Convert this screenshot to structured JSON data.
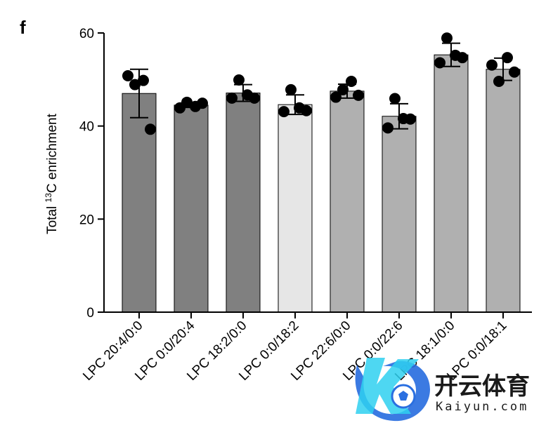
{
  "panel_label": "f",
  "chart_data": {
    "type": "bar",
    "ylabel_prefix": "Total ",
    "ylabel_sup": "13",
    "ylabel_suffix": "C enrichment",
    "ylim": [
      0,
      60
    ],
    "yticks": [
      0,
      20,
      40,
      60
    ],
    "categories": [
      "LPC 20:4/0:0",
      "LPC 0:0/20:4",
      "LPC 18:2/0:0",
      "LPC 0:0/18:2",
      "LPC 22:6/0:0",
      "LPC 0:0/22:6",
      "LPC 18:1/0:0",
      "LPC 0:0/18:1"
    ],
    "values": [
      47.0,
      44.5,
      47.1,
      44.6,
      47.5,
      42.1,
      55.3,
      52.2
    ],
    "errors": [
      5.2,
      0.5,
      1.8,
      2.1,
      1.5,
      2.7,
      2.5,
      2.4
    ],
    "points": [
      [
        50.8,
        48.9,
        49.8,
        39.3
      ],
      [
        43.9,
        45.1,
        44.2,
        44.9
      ],
      [
        46.0,
        49.9,
        46.7,
        46.0
      ],
      [
        43.1,
        47.8,
        43.9,
        43.3
      ],
      [
        46.2,
        47.8,
        49.6,
        46.6
      ],
      [
        39.6,
        45.9,
        41.6,
        41.5
      ],
      [
        53.6,
        58.9,
        55.2,
        54.7
      ],
      [
        53.1,
        49.6,
        54.7,
        51.6
      ]
    ],
    "bar_colors": [
      "#808080",
      "#808080",
      "#808080",
      "#e6e6e6",
      "#b0b0b0",
      "#b0b0b0",
      "#b0b0b0",
      "#b0b0b0"
    ],
    "grid": false,
    "legend": "none"
  },
  "watermark": {
    "text_cn": "开云体育",
    "text_en": "Kaiyun.com",
    "logo_letter": "K",
    "colors": {
      "cyan": "#2fd0f0",
      "blue": "#2a6fe0"
    }
  }
}
